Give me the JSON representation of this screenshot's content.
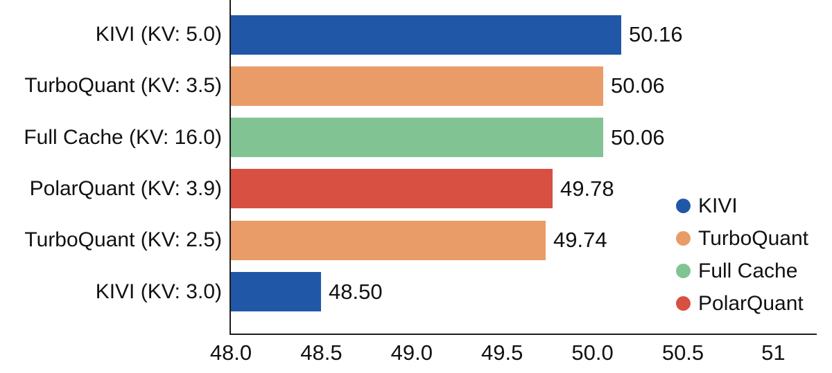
{
  "chart_data": {
    "type": "bar",
    "orientation": "horizontal",
    "title": "",
    "xlabel": "",
    "ylabel": "",
    "grid": false,
    "categories": [
      "KIVI (KV: 5.0)",
      "TurboQuant (KV: 3.5)",
      "Full Cache (KV: 16.0)",
      "PolarQuant (KV: 3.9)",
      "TurboQuant (KV: 2.5)",
      "KIVI (KV: 3.0)"
    ],
    "bar_series": [
      "KIVI",
      "TurboQuant",
      "Full Cache",
      "PolarQuant",
      "TurboQuant",
      "KIVI"
    ],
    "values": [
      50.16,
      50.06,
      50.06,
      49.78,
      49.74,
      48.5
    ],
    "value_labels": [
      "50.16",
      "50.06",
      "50.06",
      "49.78",
      "49.74",
      "48.50"
    ],
    "xlim": [
      48.0,
      51.24
    ],
    "x_ticks": [
      {
        "value": 48.0,
        "label": "48.0"
      },
      {
        "value": 48.5,
        "label": "48.5"
      },
      {
        "value": 49.0,
        "label": "49.0"
      },
      {
        "value": 49.5,
        "label": "49.5"
      },
      {
        "value": 50.0,
        "label": "50.0"
      },
      {
        "value": 50.5,
        "label": "50.5"
      },
      {
        "value": 51.0,
        "label": "51"
      }
    ],
    "legend": {
      "position": "right-inside",
      "marker": "circle",
      "entries": [
        {
          "label": "KIVI",
          "color": "#2157a7"
        },
        {
          "label": "TurboQuant",
          "color": "#e99c67"
        },
        {
          "label": "Full Cache",
          "color": "#82c394"
        },
        {
          "label": "PolarQuant",
          "color": "#d85041"
        }
      ]
    },
    "colors": {
      "KIVI": "#2157a7",
      "TurboQuant": "#e99c67",
      "Full Cache": "#82c394",
      "PolarQuant": "#d85041",
      "axis": "#1c1c1c",
      "text": "#111111",
      "background": "#ffffff"
    }
  }
}
